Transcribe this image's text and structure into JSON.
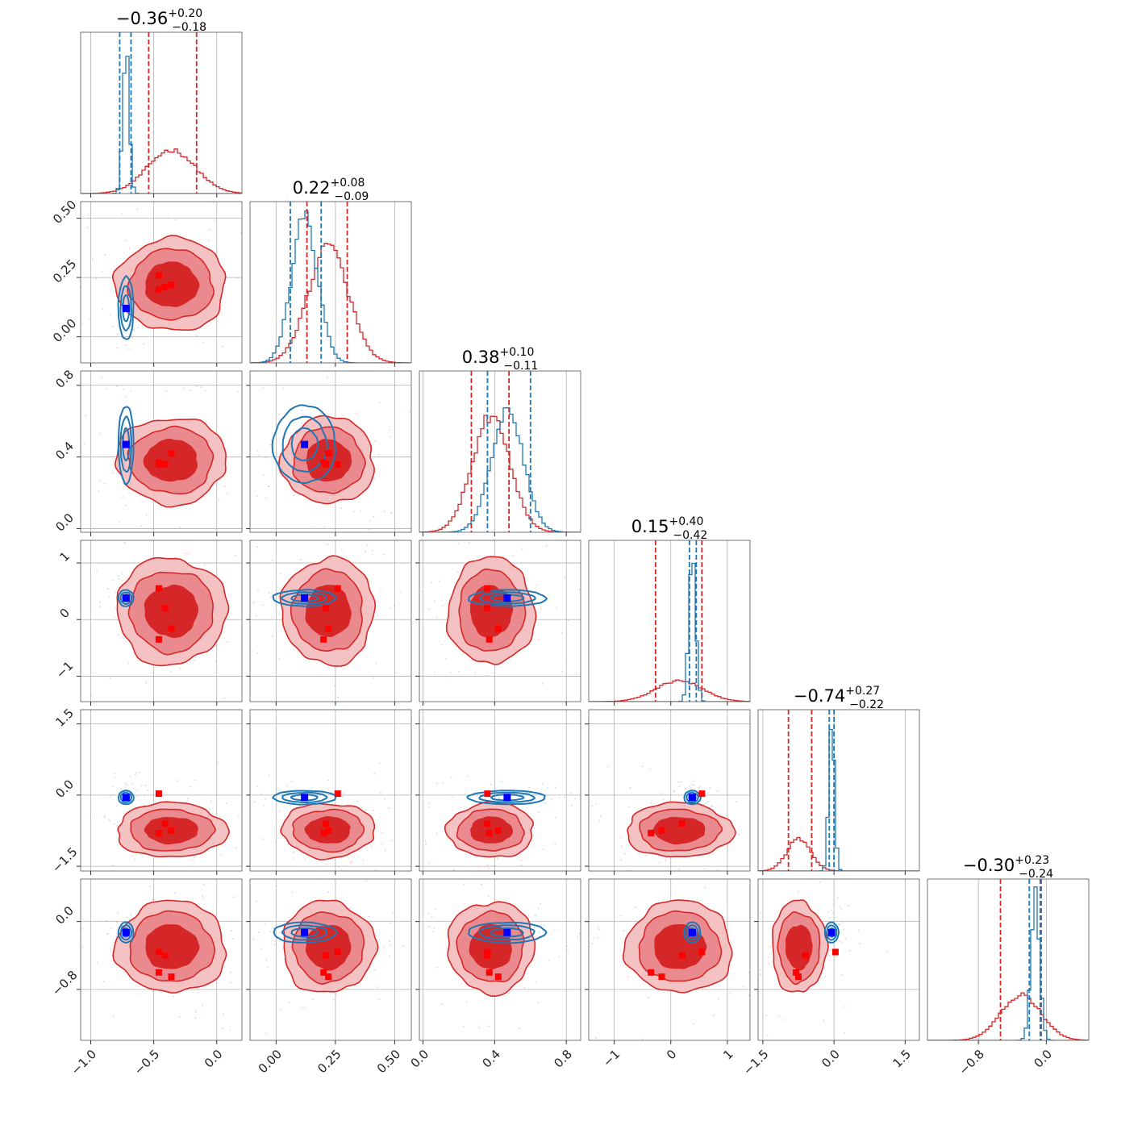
{
  "chart_data": {
    "type": "corner",
    "n_params": 6,
    "colors": {
      "series_a": "#d62728",
      "series_b": "#1f77b4",
      "marker_a": "#ff0000",
      "marker_b": "#0000ff",
      "grid": "#b0b0b0"
    },
    "titles": [
      {
        "param": 0,
        "median": "−0.36",
        "plus": "+0.20",
        "minus": "−0.18"
      },
      {
        "param": 1,
        "median": "0.22",
        "plus": "+0.08",
        "minus": "−0.09"
      },
      {
        "param": 2,
        "median": "0.38",
        "plus": "+0.10",
        "minus": "−0.11"
      },
      {
        "param": 3,
        "median": "0.15",
        "plus": "+0.40",
        "minus": "−0.42"
      },
      {
        "param": 4,
        "median": "−0.74",
        "plus": "+0.27",
        "minus": "−0.22"
      },
      {
        "param": 5,
        "median": "−0.30",
        "plus": "+0.23",
        "minus": "−0.24"
      }
    ],
    "ranges": [
      [
        -1.08,
        0.2
      ],
      [
        -0.11,
        0.57
      ],
      [
        -0.02,
        0.88
      ],
      [
        -1.45,
        1.4
      ],
      [
        -1.6,
        1.8
      ],
      [
        -1.4,
        0.5
      ]
    ],
    "ticks": [
      {
        "values": [
          -1.0,
          -0.5,
          0.0
        ],
        "labels": [
          "−1.0",
          "−0.5",
          "0.0"
        ]
      },
      {
        "values": [
          0.0,
          0.25,
          0.5
        ],
        "labels": [
          "0.00",
          "0.25",
          "0.50"
        ]
      },
      {
        "values": [
          0.0,
          0.4,
          0.8
        ],
        "labels": [
          "0.0",
          "0.4",
          "0.8"
        ]
      },
      {
        "values": [
          -1,
          0,
          1
        ],
        "labels": [
          "−1",
          "0",
          "1"
        ]
      },
      {
        "values": [
          -1.5,
          0.0,
          1.5
        ],
        "labels": [
          "−1.5",
          "0.0",
          "1.5"
        ]
      },
      {
        "values": [
          -0.8,
          0.0
        ],
        "labels": [
          "−0.8",
          "0.0"
        ]
      }
    ],
    "series": [
      {
        "name": "",
        "color": "#d62728",
        "mean": [
          -0.36,
          0.22,
          0.38,
          0.15,
          -0.74,
          -0.3
        ],
        "sd": [
          0.19,
          0.085,
          0.105,
          0.41,
          0.25,
          0.235
        ],
        "quantiles": [
          [
            -0.54,
            -0.16
          ],
          [
            0.13,
            0.3
          ],
          [
            0.27,
            0.48
          ],
          [
            -0.27,
            0.55
          ],
          [
            -0.96,
            -0.47
          ],
          [
            -0.54,
            -0.07
          ]
        ],
        "markers": [
          [
            -0.41,
            -0.46,
            -0.36,
            -0.46
          ],
          [
            0.21,
            0.26,
            0.22,
            0.2
          ],
          [
            0.36,
            0.36,
            0.42,
            0.37
          ],
          [
            0.2,
            0.55,
            -0.16,
            -0.35
          ],
          [
            -0.6,
            0.03,
            -0.75,
            -0.8
          ],
          [
            -0.4,
            -0.36,
            -0.65,
            -0.6
          ]
        ]
      },
      {
        "name": "",
        "color": "#1f77b4",
        "mean": [
          -0.72,
          0.12,
          0.47,
          0.38,
          -0.05,
          -0.13
        ],
        "sd": [
          0.025,
          0.055,
          0.09,
          0.06,
          0.06,
          0.05
        ],
        "quantiles": [
          [
            -0.77,
            -0.68
          ],
          [
            0.06,
            0.19
          ],
          [
            0.36,
            0.6
          ],
          [
            0.33,
            0.45
          ],
          [
            -0.1,
            0.0
          ],
          [
            -0.2,
            -0.06
          ]
        ],
        "markers": [
          [
            -0.72
          ],
          [
            0.12
          ],
          [
            0.47
          ],
          [
            0.38
          ],
          [
            -0.05
          ],
          [
            -0.13
          ]
        ]
      }
    ]
  }
}
